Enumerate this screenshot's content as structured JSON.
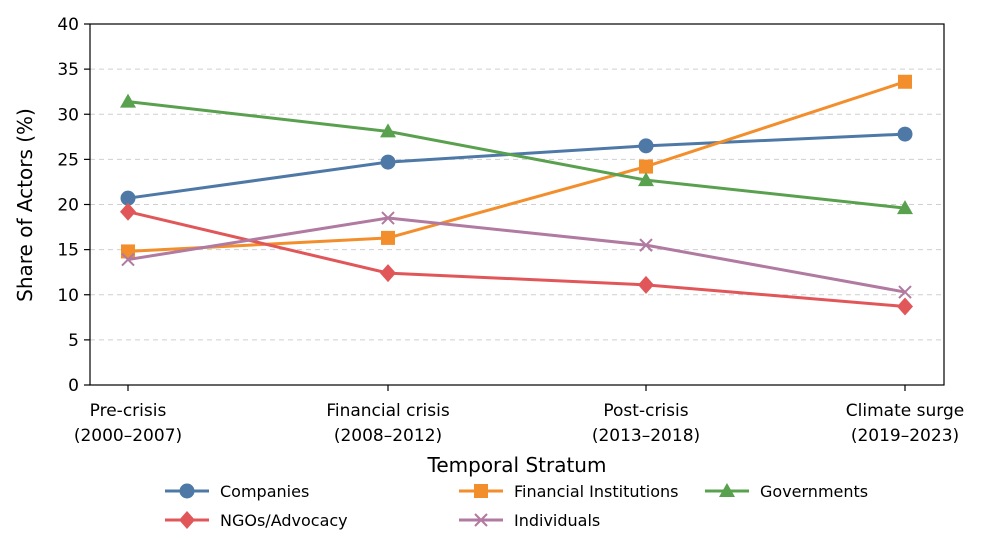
{
  "chart_data": {
    "type": "line",
    "title": "",
    "xlabel": "Temporal Stratum",
    "ylabel": "Share of Actors (%)",
    "ylim": [
      0,
      40
    ],
    "yticks": [
      0,
      5,
      10,
      15,
      20,
      25,
      30,
      35,
      40
    ],
    "grid": "horizontal dashed",
    "categories": [
      {
        "line1": "Pre-crisis",
        "line2": "(2000–2007)"
      },
      {
        "line1": "Financial crisis",
        "line2": "(2008–2012)"
      },
      {
        "line1": "Post-crisis",
        "line2": "(2013–2018)"
      },
      {
        "line1": "Climate surge",
        "line2": "(2019–2023)"
      }
    ],
    "series": [
      {
        "name": "Companies",
        "values": [
          20.7,
          24.7,
          26.5,
          27.8
        ],
        "color": "#4e79a7",
        "marker": "circle"
      },
      {
        "name": "Financial Institutions",
        "values": [
          14.8,
          16.3,
          24.2,
          33.6
        ],
        "color": "#f28e2b",
        "marker": "square"
      },
      {
        "name": "Governments",
        "values": [
          31.4,
          28.1,
          22.7,
          19.6
        ],
        "color": "#59a14f",
        "marker": "triangle"
      },
      {
        "name": "NGOs/Advocacy",
        "values": [
          19.2,
          12.4,
          11.1,
          8.7
        ],
        "color": "#e15759",
        "marker": "diamond"
      },
      {
        "name": "Individuals",
        "values": [
          13.9,
          18.5,
          15.5,
          10.3
        ],
        "color": "#b07aa1",
        "marker": "x"
      }
    ],
    "legend": {
      "placement": "bottom-center",
      "columns": 3
    }
  }
}
